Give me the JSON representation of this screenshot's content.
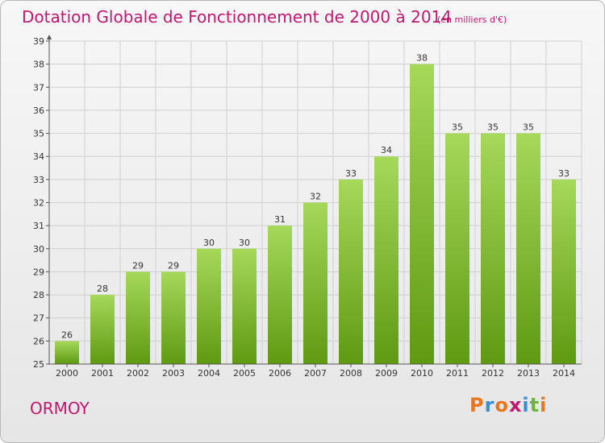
{
  "header": {
    "title": "Dotation Globale de Fonctionnement de 2000 à 2014",
    "unit": "(en milliers d'€)"
  },
  "footer": {
    "place": "ORMOY",
    "logo": "Proxiti"
  },
  "colors": {
    "title": "#c0186e",
    "bar_top": "#a6d85a",
    "bar_bottom": "#5f9a12",
    "grid": "#d0d0d0",
    "logo_letters": [
      "#e87722",
      "#3a8fd4",
      "#e87722",
      "#c0186e",
      "#3a8fd4",
      "#6fb43a",
      "#e87722"
    ]
  },
  "chart_data": {
    "type": "bar",
    "title": "Dotation Globale de Fonctionnement de 2000 à 2014",
    "subtitle": "(en milliers d'€)",
    "categories": [
      "2000",
      "2001",
      "2002",
      "2003",
      "2004",
      "2005",
      "2006",
      "2007",
      "2008",
      "2009",
      "2010",
      "2011",
      "2012",
      "2013",
      "2014"
    ],
    "values": [
      26,
      28,
      29,
      29,
      30,
      30,
      31,
      32,
      33,
      34,
      38,
      35,
      35,
      35,
      33
    ],
    "ylim": [
      25,
      39
    ],
    "yticks": [
      25,
      26,
      27,
      28,
      29,
      30,
      31,
      32,
      33,
      34,
      35,
      36,
      37,
      38,
      39
    ],
    "grid": true,
    "data_labels": true
  }
}
